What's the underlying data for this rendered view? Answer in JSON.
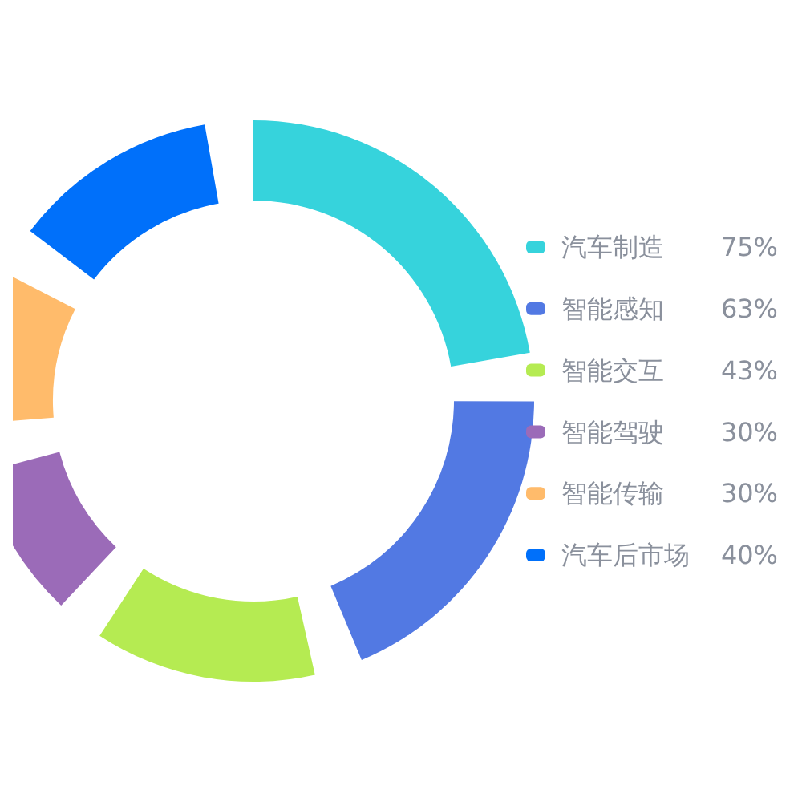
{
  "chart_data": {
    "type": "donut",
    "categories": [
      "汽车制造",
      "智能感知",
      "智能交互",
      "智能驾驶",
      "智能传输",
      "汽车后市场"
    ],
    "values": [
      75,
      63,
      43,
      30,
      30,
      40
    ],
    "value_labels": [
      "75%",
      "63%",
      "43%",
      "30%",
      "30%",
      "40%"
    ],
    "colors": [
      "#36d3dc",
      "#5279e3",
      "#b5eb52",
      "#9b6bb8",
      "#ffbb6b",
      "#0070fa"
    ],
    "legend": "right"
  }
}
